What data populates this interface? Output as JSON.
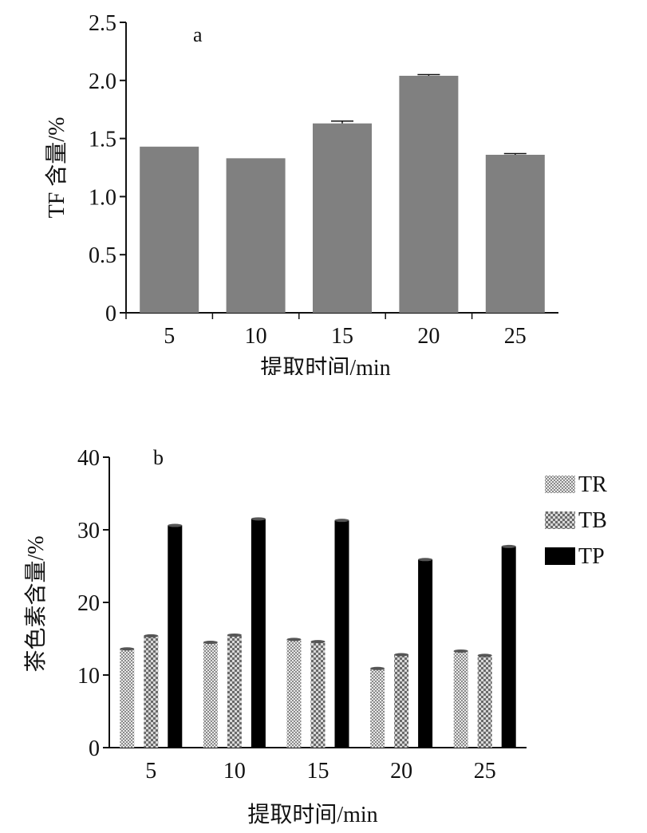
{
  "chart_data": [
    {
      "type": "bar",
      "panel_label": "a",
      "categories": [
        "5",
        "10",
        "15",
        "20",
        "25"
      ],
      "values": [
        1.43,
        1.33,
        1.63,
        2.04,
        1.36
      ],
      "errors": [
        0.0,
        0.0,
        0.02,
        0.01,
        0.01
      ],
      "ylim": [
        0,
        2.5
      ],
      "yticks": [
        "0",
        "0.5",
        "1.0",
        "1.5",
        "2.0",
        "2.5"
      ],
      "xlabel": "提取时间/min",
      "ylabel": "TF 含量/%",
      "bar_color": "#808080",
      "grid": false,
      "legend": "none"
    },
    {
      "type": "bar",
      "panel_label": "b",
      "categories": [
        "5",
        "10",
        "15",
        "20",
        "25"
      ],
      "series": [
        {
          "name": "TR",
          "values": [
            13.6,
            14.5,
            14.9,
            10.9,
            13.3
          ],
          "pattern": "fine-check"
        },
        {
          "name": "TB",
          "values": [
            15.4,
            15.5,
            14.6,
            12.8,
            12.7
          ],
          "pattern": "coarse-check"
        },
        {
          "name": "TP",
          "values": [
            30.6,
            31.5,
            31.3,
            25.9,
            27.7
          ],
          "pattern": "solid-black"
        }
      ],
      "ylim": [
        0,
        40
      ],
      "yticks": [
        "0",
        "10",
        "20",
        "30",
        "40"
      ],
      "xlabel": "提取时间/min",
      "ylabel": "茶色素含量/%",
      "grid": false,
      "legend": "top-right"
    }
  ]
}
